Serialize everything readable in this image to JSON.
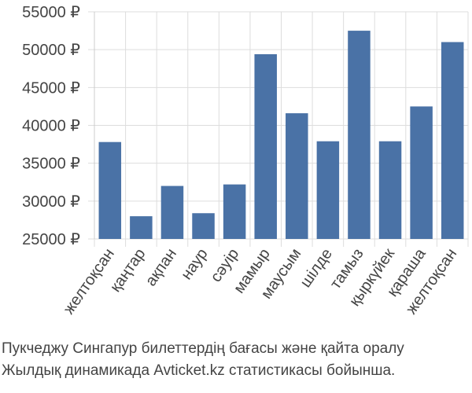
{
  "chart_data": {
    "type": "bar",
    "categories": [
      "желтоқсан",
      "қаңтар",
      "ақпан",
      "наур",
      "сәуір",
      "мамыр",
      "маусым",
      "шілде",
      "тамыз",
      "қыркүйек",
      "қараша",
      "желтоқсан"
    ],
    "values": [
      37800,
      28000,
      32000,
      28400,
      32200,
      49400,
      41600,
      37900,
      52500,
      37900,
      42500,
      51000
    ],
    "ylim": [
      25000,
      55000
    ],
    "yticks": [
      25000,
      30000,
      35000,
      40000,
      45000,
      50000,
      55000
    ],
    "ytick_labels": [
      "25000 ₽",
      "30000 ₽",
      "35000 ₽",
      "40000 ₽",
      "45000 ₽",
      "50000 ₽",
      "55000 ₽"
    ],
    "grid": true,
    "bar_color": "#4a72a6",
    "grid_color": "#dddddd",
    "axis_color": "#cccccc",
    "text_color": "#444444"
  },
  "caption": {
    "line1": "Пукчеджу Сингапур билеттердің бағасы және қайта оралу",
    "line2": "Жылдық динамикада Avticket.kz статистикасы бойынша."
  }
}
